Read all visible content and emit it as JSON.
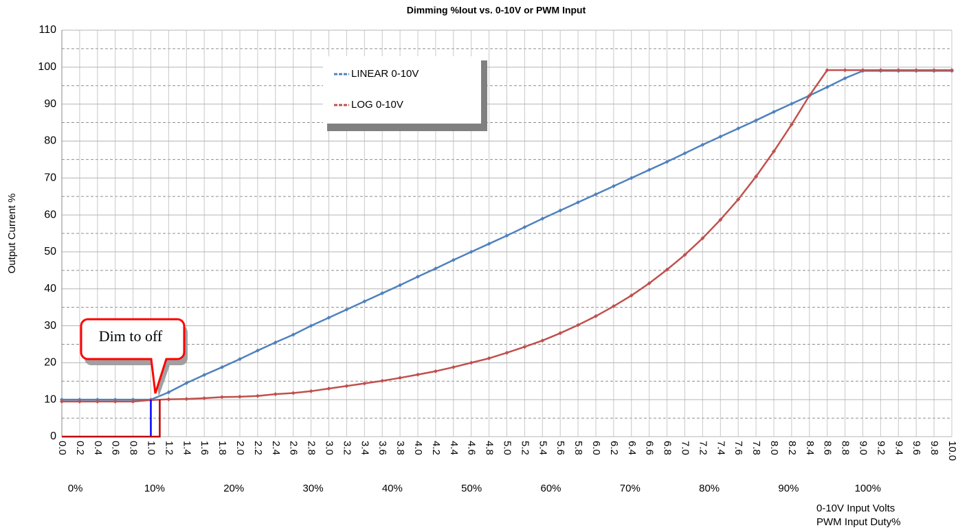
{
  "chart_data": {
    "type": "line",
    "title": "Dimming %Iout vs. 0-10V or PWM Input",
    "y_label": "Output Current %",
    "x_label": "0-10V Input Volts",
    "x2_label": "PWM Input Duty%",
    "annotation": "Dim to off",
    "legend": "upper-center",
    "grid": true,
    "xlim": [
      0,
      10
    ],
    "ylim": [
      0,
      110
    ],
    "yticks": [
      0,
      10,
      20,
      30,
      40,
      50,
      60,
      70,
      80,
      90,
      100,
      110
    ],
    "yminorticks": [
      5,
      15,
      25,
      35,
      45,
      55,
      65,
      75,
      85,
      95,
      105
    ],
    "xticks": [
      {
        "value": 0,
        "label": "0.0"
      },
      {
        "value": 0.2,
        "label": "0.2"
      },
      {
        "value": 0.4,
        "label": "0.4"
      },
      {
        "value": 0.6,
        "label": "0.6"
      },
      {
        "value": 0.8,
        "label": "0.8"
      },
      {
        "value": 1,
        "label": "1.0"
      },
      {
        "value": 1.2,
        "label": "1.2"
      },
      {
        "value": 1.4,
        "label": "1.4"
      },
      {
        "value": 1.6,
        "label": "1.6"
      },
      {
        "value": 1.8,
        "label": "1.8"
      },
      {
        "value": 2,
        "label": "2.0"
      },
      {
        "value": 2.2,
        "label": "2.2"
      },
      {
        "value": 2.4,
        "label": "2.4"
      },
      {
        "value": 2.6,
        "label": "2.6"
      },
      {
        "value": 2.8,
        "label": "2.8"
      },
      {
        "value": 3,
        "label": "3.0"
      },
      {
        "value": 3.2,
        "label": "3.2"
      },
      {
        "value": 3.4,
        "label": "3.4"
      },
      {
        "value": 3.6,
        "label": "3.6"
      },
      {
        "value": 3.8,
        "label": "3.8"
      },
      {
        "value": 4,
        "label": "4.0"
      },
      {
        "value": 4.2,
        "label": "4.2"
      },
      {
        "value": 4.4,
        "label": "4.4"
      },
      {
        "value": 4.6,
        "label": "4.6"
      },
      {
        "value": 4.8,
        "label": "4.8"
      },
      {
        "value": 5,
        "label": "5.0"
      },
      {
        "value": 5.2,
        "label": "5.2"
      },
      {
        "value": 5.4,
        "label": "5.4"
      },
      {
        "value": 5.6,
        "label": "5.6"
      },
      {
        "value": 5.8,
        "label": "5.8"
      },
      {
        "value": 6,
        "label": "6.0"
      },
      {
        "value": 6.2,
        "label": "6.2"
      },
      {
        "value": 6.4,
        "label": "6.4"
      },
      {
        "value": 6.6,
        "label": "6.6"
      },
      {
        "value": 6.8,
        "label": "6.8"
      },
      {
        "value": 7,
        "label": "7.0"
      },
      {
        "value": 7.2,
        "label": "7.2"
      },
      {
        "value": 7.4,
        "label": "7.4"
      },
      {
        "value": 7.6,
        "label": "7.6"
      },
      {
        "value": 7.8,
        "label": "7.8"
      },
      {
        "value": 8,
        "label": "8.0"
      },
      {
        "value": 8.2,
        "label": "8.2"
      },
      {
        "value": 8.4,
        "label": "8.4"
      },
      {
        "value": 8.6,
        "label": "8.6"
      },
      {
        "value": 8.8,
        "label": "8.8"
      },
      {
        "value": 9,
        "label": "9.0"
      },
      {
        "value": 9.2,
        "label": "9.2"
      },
      {
        "value": 9.4,
        "label": "9.4"
      },
      {
        "value": 9.6,
        "label": "9.6"
      },
      {
        "value": 9.8,
        "label": "9.8"
      },
      {
        "value": 10,
        "label": "10.0"
      }
    ],
    "x2lim": [
      -1.7,
      110.6
    ],
    "x2ticks": [
      {
        "value": 0,
        "label": "0%"
      },
      {
        "value": 10,
        "label": "10%"
      },
      {
        "value": 20,
        "label": "20%"
      },
      {
        "value": 30,
        "label": "30%"
      },
      {
        "value": 40,
        "label": "40%"
      },
      {
        "value": 50,
        "label": "50%"
      },
      {
        "value": 60,
        "label": "60%"
      },
      {
        "value": 70,
        "label": "70%"
      },
      {
        "value": 80,
        "label": "80%"
      },
      {
        "value": 90,
        "label": "90%"
      },
      {
        "value": 100,
        "label": "100%"
      }
    ],
    "x": [
      0,
      0.2,
      0.4,
      0.6,
      0.8,
      1,
      1.2,
      1.4,
      1.6,
      1.8,
      2,
      2.2,
      2.4,
      2.6,
      2.8,
      3,
      3.2,
      3.4,
      3.6,
      3.8,
      4,
      4.2,
      4.4,
      4.6,
      4.8,
      5,
      5.2,
      5.4,
      5.6,
      5.8,
      6,
      6.2,
      6.4,
      6.6,
      6.8,
      7,
      7.2,
      7.4,
      7.6,
      7.8,
      8,
      8.2,
      8.4,
      8.6,
      8.8,
      9,
      9.2,
      9.4,
      9.6,
      9.8,
      10
    ],
    "series": [
      {
        "name": "LINEAR 0-10V",
        "color": "#4f81bd",
        "values": [
          10,
          10,
          10,
          10,
          10,
          10,
          12,
          14.5,
          16.7,
          18.8,
          21,
          23.3,
          25.5,
          27.6,
          30,
          32.2,
          34.4,
          36.6,
          38.8,
          41,
          43.3,
          45.5,
          47.8,
          50,
          52.2,
          54.4,
          56.7,
          59,
          61.2,
          63.4,
          65.6,
          67.8,
          70,
          72.2,
          74.4,
          76.7,
          79,
          81.2,
          83.4,
          85.6,
          87.9,
          90.1,
          92.3,
          94.6,
          97,
          99,
          99,
          99,
          99,
          99,
          99
        ]
      },
      {
        "name": "LOG 0-10V",
        "color": "#c0504d",
        "values": [
          9.5,
          9.5,
          9.5,
          9.5,
          9.5,
          9.9,
          10.1,
          10.2,
          10.4,
          10.7,
          10.8,
          11,
          11.5,
          11.8,
          12.3,
          13,
          13.7,
          14.4,
          15.1,
          15.9,
          16.8,
          17.7,
          18.8,
          20,
          21.2,
          22.7,
          24.3,
          26,
          28,
          30.2,
          32.6,
          35.3,
          38.2,
          41.5,
          45.2,
          49.2,
          53.7,
          58.7,
          64.2,
          70.4,
          77.2,
          84.5,
          92.3,
          99.2,
          99.2,
          99.2,
          99.2,
          99.2,
          99.2,
          99.2,
          99.2
        ]
      }
    ],
    "hysteresis": [
      {
        "color": "#0000ff",
        "x": [
          1.0,
          1.0
        ],
        "values": [
          10,
          0
        ]
      },
      {
        "color": "#c00000",
        "x": [
          0,
          1.1,
          1.1
        ],
        "values": [
          0,
          0,
          10
        ]
      }
    ]
  }
}
